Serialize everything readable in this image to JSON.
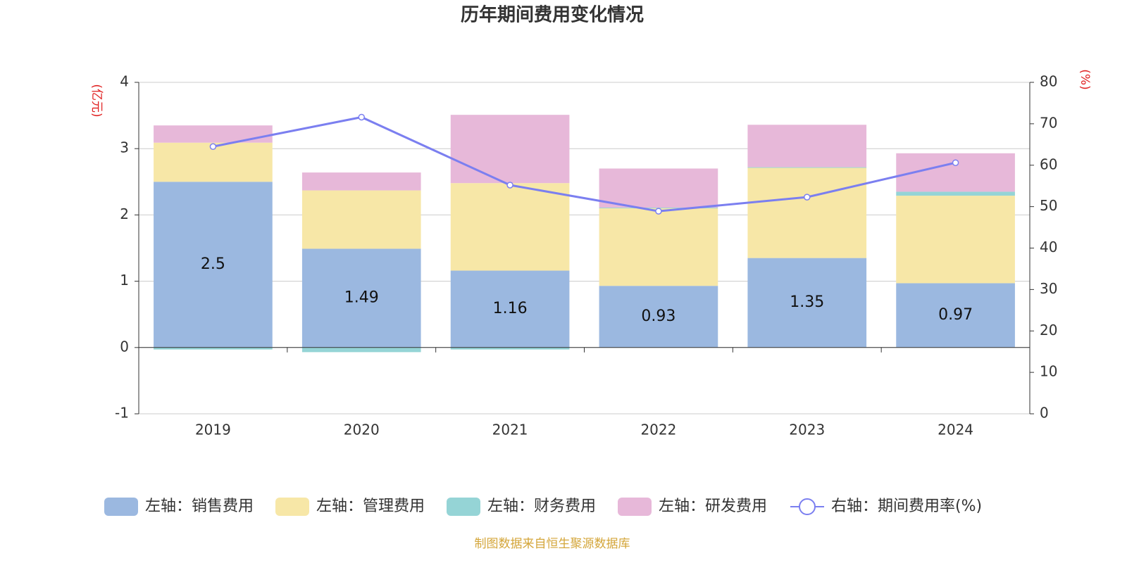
{
  "chart_data": {
    "type": "bar",
    "title": "历年期间费用变化情况",
    "ylabel": "(亿元)",
    "y2label": "(%)",
    "source": "制图数据来自恒生聚源数据库",
    "categories": [
      "2019",
      "2020",
      "2021",
      "2022",
      "2023",
      "2024"
    ],
    "ylim": [
      -1,
      4
    ],
    "yticks": [
      -1,
      0,
      1,
      2,
      3,
      4
    ],
    "y2lim": [
      0,
      80
    ],
    "y2ticks": [
      0,
      10,
      20,
      30,
      40,
      50,
      60,
      70,
      80
    ],
    "grid": true,
    "series": [
      {
        "name": "左轴：销售费用",
        "type": "bar",
        "color": "#9bb8e0",
        "labels": true,
        "values": [
          2.5,
          1.49,
          1.16,
          0.93,
          1.35,
          0.97
        ]
      },
      {
        "name": "左轴：管理费用",
        "type": "bar",
        "color": "#f7e7a7",
        "values": [
          0.59,
          0.88,
          1.32,
          1.17,
          1.36,
          1.32
        ]
      },
      {
        "name": "左轴：财务费用",
        "type": "bar",
        "color": "#95d4d6",
        "values": [
          -0.03,
          -0.07,
          -0.03,
          0.01,
          0.01,
          0.06
        ]
      },
      {
        "name": "左轴：研发费用",
        "type": "bar",
        "color": "#e7b8d9",
        "values": [
          0.26,
          0.27,
          1.03,
          0.59,
          0.64,
          0.58
        ]
      },
      {
        "name": "右轴：期间费用率(%)",
        "type": "line",
        "axis": "y2",
        "color": "#7b7ff0",
        "values": [
          64.5,
          71.6,
          55.2,
          48.9,
          52.3,
          60.6
        ]
      }
    ]
  }
}
